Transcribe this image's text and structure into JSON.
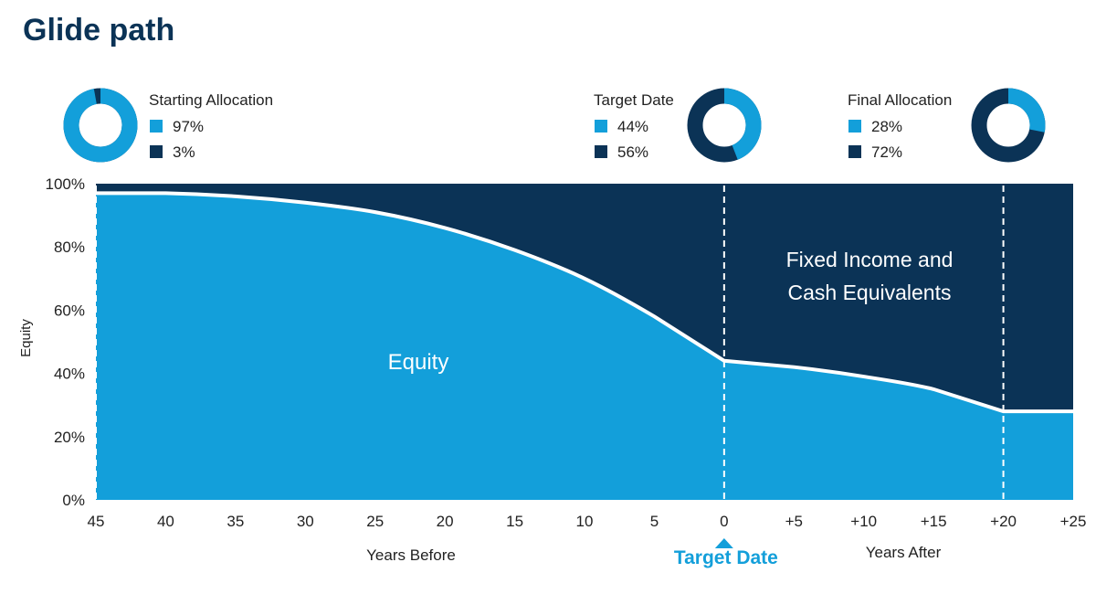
{
  "title": "Glide path",
  "colors": {
    "equity": "#139fda",
    "fixed_income": "#0b3356",
    "title": "#0b3356"
  },
  "allocations": [
    {
      "label": "Starting Allocation",
      "equity": 97,
      "fixed_income": 3,
      "equity_text": "97%",
      "fixed_text": "3%"
    },
    {
      "label": "Target Date",
      "equity": 44,
      "fixed_income": 56,
      "equity_text": "44%",
      "fixed_text": "56%"
    },
    {
      "label": "Final Allocation",
      "equity": 28,
      "fixed_income": 72,
      "equity_text": "28%",
      "fixed_text": "72%"
    }
  ],
  "chart_data": {
    "type": "area",
    "title": "",
    "ylabel": "Equity",
    "xlabel_before": "Years Before",
    "xlabel_after": "Years After",
    "target_label": "Target Date",
    "ylim": [
      0,
      100
    ],
    "xlim": [
      -45,
      25
    ],
    "y_ticks": [
      "0%",
      "20%",
      "40%",
      "60%",
      "80%",
      "100%"
    ],
    "x_ticks": [
      {
        "value": -45,
        "label": "45"
      },
      {
        "value": -40,
        "label": "40"
      },
      {
        "value": -35,
        "label": "35"
      },
      {
        "value": -30,
        "label": "30"
      },
      {
        "value": -25,
        "label": "25"
      },
      {
        "value": -20,
        "label": "20"
      },
      {
        "value": -15,
        "label": "15"
      },
      {
        "value": -10,
        "label": "10"
      },
      {
        "value": -5,
        "label": "5"
      },
      {
        "value": 0,
        "label": "0"
      },
      {
        "value": 5,
        "label": "+5"
      },
      {
        "value": 10,
        "label": "+10"
      },
      {
        "value": 15,
        "label": "+15"
      },
      {
        "value": 20,
        "label": "+20"
      },
      {
        "value": 25,
        "label": "+25"
      }
    ],
    "series": [
      {
        "name": "Equity",
        "x": [
          -45,
          -40,
          -35,
          -30,
          -25,
          -20,
          -15,
          -10,
          -5,
          0,
          5,
          10,
          15,
          20,
          25
        ],
        "values": [
          97,
          97,
          96,
          94,
          91,
          86,
          79,
          70,
          58,
          44,
          42,
          39,
          35,
          28,
          28
        ]
      },
      {
        "name": "Fixed Income and Cash Equivalents"
      }
    ],
    "area_labels": {
      "equity": "Equity",
      "fixed_line1": "Fixed Income and",
      "fixed_line2": "Cash Equivalents"
    },
    "dashed_lines_at": [
      -45,
      0,
      20
    ],
    "grid": false
  }
}
